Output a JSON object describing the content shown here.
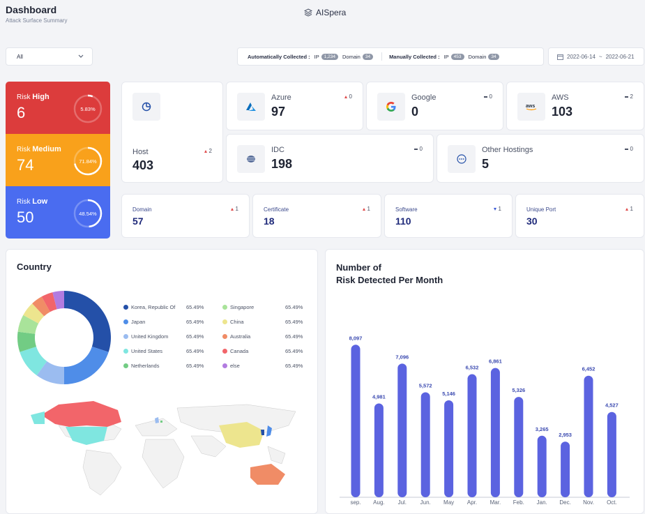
{
  "header": {
    "title": "Dashboard",
    "subtitle": "Attack Surface Summary",
    "brand": "AISpera"
  },
  "filter": {
    "selected": "All"
  },
  "collection": {
    "auto_label": "Automatically Collected :",
    "auto_ip_label": "IP",
    "auto_ip": "1,234",
    "auto_domain_label": "Domain",
    "auto_domain": "34",
    "manual_label": "Manually Collected :",
    "manual_ip_label": "IP",
    "manual_ip": "453",
    "manual_domain_label": "Domain",
    "manual_domain": "34"
  },
  "date_range": {
    "start": "2022-06-14",
    "sep": "~",
    "end": "2022-06-21"
  },
  "risk": {
    "high": {
      "prefix": "Risk",
      "level": "High",
      "count": "6",
      "pct": "5.83%",
      "fraction": 0.0583,
      "color": "#dc3c3c"
    },
    "medium": {
      "prefix": "Risk",
      "level": "Medium",
      "count": "74",
      "pct": "71.84%",
      "fraction": 0.7184,
      "color": "#f9a11b"
    },
    "low": {
      "prefix": "Risk",
      "level": "Low",
      "count": "50",
      "pct": "48.54%",
      "fraction": 0.4854,
      "color": "#4a6cf0"
    }
  },
  "host": {
    "label": "Host",
    "count": "403",
    "delta": "2",
    "icon": "pie-chart-icon"
  },
  "hostings": {
    "azure": {
      "label": "Azure",
      "count": "97",
      "delta": "0"
    },
    "google": {
      "label": "Google",
      "count": "0",
      "delta": "0"
    },
    "aws": {
      "label": "AWS",
      "count": "103",
      "delta": "2",
      "logo": "aws"
    },
    "idc": {
      "label": "IDC",
      "count": "198",
      "delta": "0"
    },
    "other": {
      "label": "Other Hostings",
      "count": "5",
      "delta": "0"
    }
  },
  "assets": {
    "domain": {
      "label": "Domain",
      "count": "57",
      "delta": "1"
    },
    "certificate": {
      "label": "Certificate",
      "count": "18",
      "delta": "1"
    },
    "software": {
      "label": "Software",
      "count": "110",
      "delta": "1"
    },
    "unique_port": {
      "label": "Unique Port",
      "count": "30",
      "delta": "1"
    }
  },
  "country": {
    "title": "Country",
    "legend": [
      {
        "name": "Korea, Republic Of",
        "pct": "65.49%",
        "color": "#2450a8"
      },
      {
        "name": "Japan",
        "pct": "65.49%",
        "color": "#4f8de8"
      },
      {
        "name": "United Kingdom",
        "pct": "65.49%",
        "color": "#9bbcf0"
      },
      {
        "name": "United States",
        "pct": "65.49%",
        "color": "#7fe6e0"
      },
      {
        "name": "Netherlands",
        "pct": "65.49%",
        "color": "#72cc84"
      },
      {
        "name": "Singapore",
        "pct": "65.49%",
        "color": "#a9e39a"
      },
      {
        "name": "China",
        "pct": "65.49%",
        "color": "#ede58e"
      },
      {
        "name": "Australia",
        "pct": "65.49%",
        "color": "#f08c66"
      },
      {
        "name": "Canada",
        "pct": "65.49%",
        "color": "#f2656a"
      },
      {
        "name": "else",
        "pct": "65.49%",
        "color": "#b27ce0"
      }
    ]
  },
  "chart_data": {
    "type": "bar",
    "title": "Number of Risk Detected Per Month",
    "title_line1": "Number of",
    "title_line2": "Risk Detected Per Month",
    "categories": [
      "sep.",
      "Aug.",
      "Jul.",
      "Jun.",
      "May",
      "Apr.",
      "Mar.",
      "Feb.",
      "Jan.",
      "Dec.",
      "Nov.",
      "Oct."
    ],
    "values": [
      8097,
      4981,
      7096,
      5572,
      5146,
      6532,
      6861,
      5326,
      3265,
      2953,
      6452,
      4527
    ],
    "labels": [
      "8,097",
      "4,981",
      "7,096",
      "5,572",
      "5,146",
      "6,532",
      "6,861",
      "5,326",
      "3,265",
      "2,953",
      "6,452",
      "4,527"
    ],
    "ylim": [
      0,
      8700
    ],
    "bar_color": "#5b63e0",
    "grid": false
  }
}
